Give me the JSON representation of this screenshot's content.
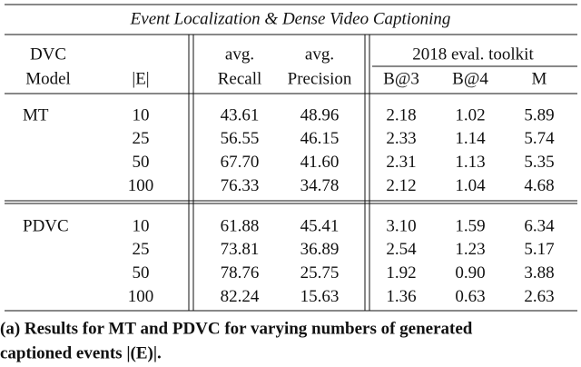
{
  "table": {
    "title": "Event Localization & Dense Video Captioning",
    "header": {
      "row1": [
        "DVC",
        "",
        "avg.",
        "avg.",
        "2018 eval. toolkit"
      ],
      "row2": [
        "Model",
        "|E|",
        "Recall",
        "Precision",
        "B@3",
        "B@4",
        "M"
      ]
    },
    "groups": [
      {
        "model": "MT",
        "rows": [
          [
            "10",
            "43.61",
            "48.96",
            "2.18",
            "1.02",
            "5.89"
          ],
          [
            "25",
            "56.55",
            "46.15",
            "2.33",
            "1.14",
            "5.74"
          ],
          [
            "50",
            "67.70",
            "41.60",
            "2.31",
            "1.13",
            "5.35"
          ],
          [
            "100",
            "76.33",
            "34.78",
            "2.12",
            "1.04",
            "4.68"
          ]
        ]
      },
      {
        "model": "PDVC",
        "rows": [
          [
            "10",
            "61.88",
            "45.41",
            "3.10",
            "1.59",
            "6.34"
          ],
          [
            "25",
            "73.81",
            "36.89",
            "2.54",
            "1.23",
            "5.17"
          ],
          [
            "50",
            "78.76",
            "25.75",
            "1.92",
            "0.90",
            "3.88"
          ],
          [
            "100",
            "82.24",
            "15.63",
            "1.36",
            "0.63",
            "2.63"
          ]
        ]
      }
    ],
    "caption": [
      "(a) Results for MT and PDVC for varying numbers of generated",
      "captioned events |(E)|."
    ]
  }
}
